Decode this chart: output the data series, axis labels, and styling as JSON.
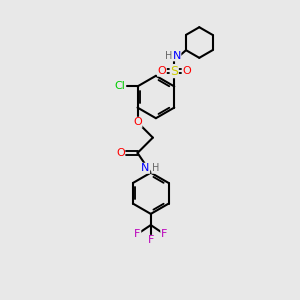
{
  "bg_color": "#e8e8e8",
  "bond_color": "#000000",
  "bond_width": 1.5,
  "atom_colors": {
    "N": "#0000ff",
    "O": "#ff0000",
    "S": "#cccc00",
    "Cl": "#00cc00",
    "F": "#bb00bb",
    "C": "#000000",
    "H": "#666666"
  },
  "font_size": 8
}
